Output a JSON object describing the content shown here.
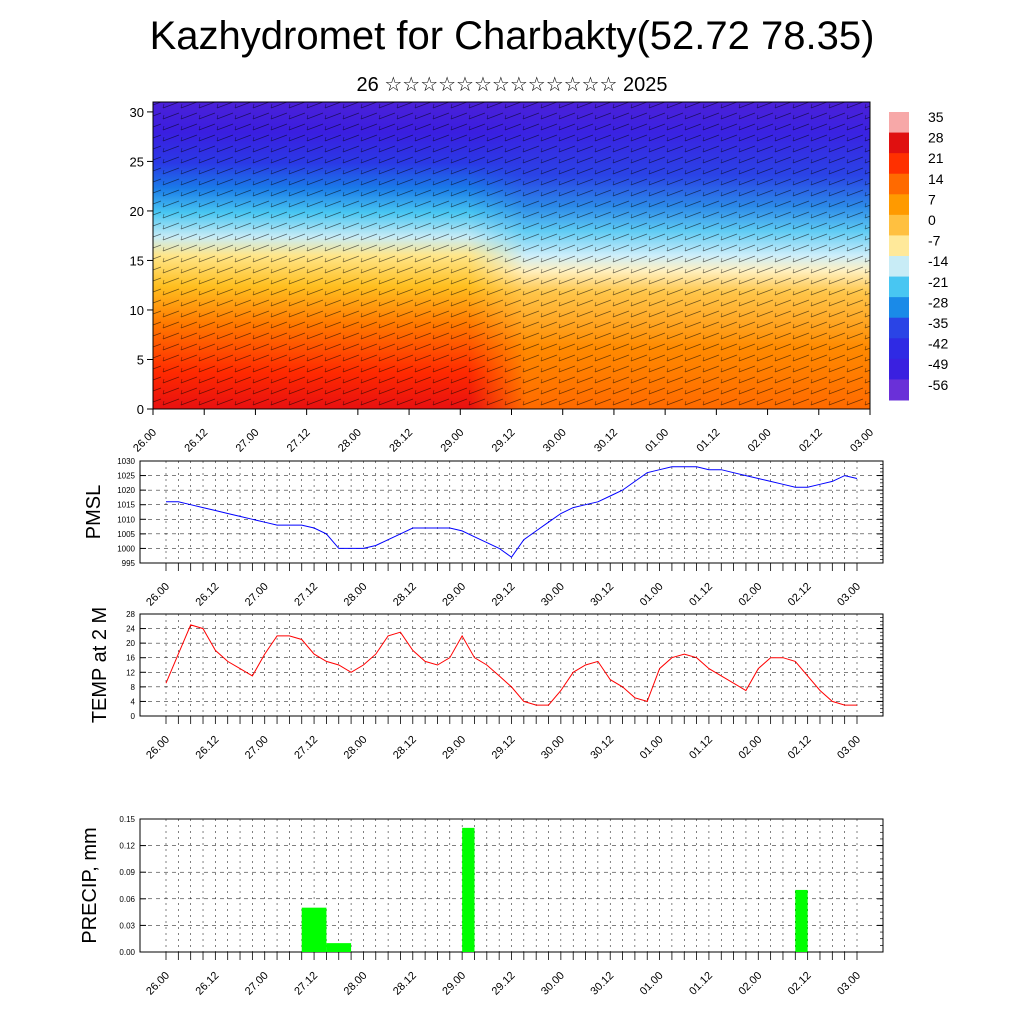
{
  "header": {
    "title": "Kazhydromet for Charbakty(52.72 78.35)",
    "subtitle": "26 ☆☆☆☆☆☆☆☆☆☆☆☆☆ 2025"
  },
  "x_ticks": [
    "26.00",
    "26.12",
    "27.00",
    "27.12",
    "28.00",
    "28.12",
    "29.00",
    "29.12",
    "30.00",
    "30.12",
    "01.00",
    "01.12",
    "02.00",
    "02.12",
    "03.00"
  ],
  "chart_data": [
    {
      "type": "heatmap",
      "title": "",
      "ylabel": "",
      "ylim": [
        0,
        31
      ],
      "yticks": [
        0,
        5,
        10,
        15,
        20,
        25,
        30
      ],
      "colorbar_labels": [
        "35",
        "28",
        "21",
        "14",
        "7",
        "0",
        "-7",
        "-14",
        "-21",
        "-28",
        "-35",
        "-42",
        "-49",
        "-56"
      ],
      "description_levels": "temperature cross-section with wind barbs"
    },
    {
      "type": "line",
      "ylabel": "PMSL",
      "ylim": [
        995,
        1030
      ],
      "yticks": [
        995,
        1000,
        1005,
        1010,
        1015,
        1020,
        1025,
        1030
      ],
      "color": "#0000ff",
      "x": [
        0,
        1,
        2,
        3,
        4,
        5,
        6,
        7,
        8,
        9,
        10,
        11,
        12,
        13,
        14,
        15,
        16,
        17,
        18,
        19,
        20,
        21,
        22,
        23,
        24,
        25,
        26,
        27,
        28,
        29,
        30,
        31,
        32,
        33,
        34,
        35,
        36,
        37,
        38,
        39,
        40,
        41,
        42,
        43,
        44,
        45,
        46,
        47,
        48,
        49,
        50,
        51,
        52,
        53,
        54,
        55,
        56
      ],
      "values": [
        1016,
        1016,
        1015,
        1014,
        1013,
        1012,
        1011,
        1010,
        1009,
        1008,
        1008,
        1008,
        1007,
        1005,
        1000,
        1000,
        1000,
        1001,
        1003,
        1005,
        1007,
        1007,
        1007,
        1007,
        1006,
        1004,
        1002,
        1000,
        997,
        1003,
        1006,
        1009,
        1012,
        1014,
        1015,
        1016,
        1018,
        1020,
        1023,
        1026,
        1027,
        1028,
        1028,
        1028,
        1027,
        1027,
        1026,
        1025,
        1024,
        1023,
        1022,
        1021,
        1021,
        1022,
        1023,
        1025,
        1024
      ]
    },
    {
      "type": "line",
      "ylabel": "TEMP at 2 M",
      "ylim": [
        0,
        28
      ],
      "yticks": [
        0,
        4,
        8,
        12,
        16,
        20,
        24,
        28
      ],
      "color": "#ff0000",
      "x": [
        0,
        1,
        2,
        3,
        4,
        5,
        6,
        7,
        8,
        9,
        10,
        11,
        12,
        13,
        14,
        15,
        16,
        17,
        18,
        19,
        20,
        21,
        22,
        23,
        24,
        25,
        26,
        27,
        28,
        29,
        30,
        31,
        32,
        33,
        34,
        35,
        36,
        37,
        38,
        39,
        40,
        41,
        42,
        43,
        44,
        45,
        46,
        47,
        48,
        49,
        50,
        51,
        52,
        53,
        54,
        55,
        56
      ],
      "values": [
        9,
        17,
        25,
        24,
        18,
        15,
        13,
        11,
        17,
        22,
        22,
        21,
        17,
        15,
        14,
        12,
        14,
        17,
        22,
        23,
        18,
        15,
        14,
        16,
        22,
        16,
        14,
        11,
        8,
        4,
        3,
        3,
        7,
        12,
        14,
        15,
        10,
        8,
        5,
        4,
        13,
        16,
        17,
        16,
        13,
        11,
        9,
        7,
        13,
        16,
        16,
        15,
        11,
        7,
        4,
        3,
        3
      ]
    },
    {
      "type": "bar",
      "ylabel": "PRECIP, mm",
      "ylim": [
        0,
        0.15
      ],
      "yticks": [
        "0.00",
        "0.03",
        "0.06",
        "0.09",
        "0.12",
        "0.15"
      ],
      "color": "#00ff00",
      "bars": [
        {
          "x_start": 11.0,
          "x_end": 13.0,
          "value": 0.05
        },
        {
          "x_start": 13.0,
          "x_end": 15.0,
          "value": 0.01
        },
        {
          "x_start": 24.0,
          "x_end": 25.0,
          "value": 0.14
        },
        {
          "x_start": 51.0,
          "x_end": 52.0,
          "value": 0.07
        }
      ]
    }
  ]
}
